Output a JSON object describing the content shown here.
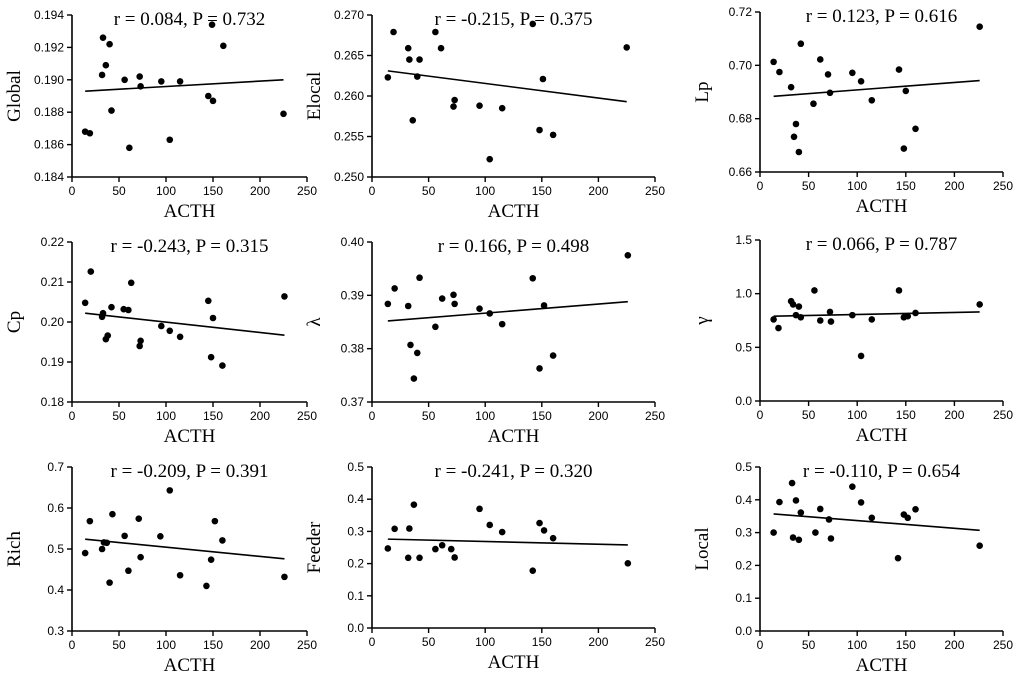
{
  "chart_data": [
    {
      "type": "scatter",
      "title": "r = 0.084, P = 0.732",
      "xlabel": "ACTH",
      "ylabel": "Global",
      "xlim": [
        0,
        250
      ],
      "xticks": [
        0,
        50,
        100,
        150,
        200,
        250
      ],
      "ylim": [
        0.184,
        0.194
      ],
      "yticks": [
        0.184,
        0.186,
        0.188,
        0.19,
        0.192,
        0.194
      ],
      "ytick_labels": [
        "0.184",
        "0.186",
        "0.188",
        "0.190",
        "0.192",
        "0.194"
      ],
      "x": [
        14,
        19,
        32,
        33,
        36,
        40,
        42,
        56,
        61,
        72,
        73,
        95,
        104,
        115,
        145,
        150,
        149,
        161,
        225
      ],
      "y": [
        0.1868,
        0.1867,
        0.1903,
        0.1926,
        0.1909,
        0.1922,
        0.1881,
        0.19,
        0.1858,
        0.1902,
        0.1896,
        0.1899,
        0.1863,
        0.1899,
        0.189,
        0.1887,
        0.1934,
        0.1921,
        0.1879
      ],
      "fit": {
        "x": [
          14,
          225
        ],
        "y": [
          0.1893,
          0.19
        ]
      }
    },
    {
      "type": "scatter",
      "title": "r = -0.215, P = 0.375",
      "xlabel": "ACTH",
      "ylabel": "Elocal",
      "xlim": [
        0,
        250
      ],
      "xticks": [
        0,
        50,
        100,
        150,
        200,
        250
      ],
      "ylim": [
        0.25,
        0.27
      ],
      "yticks": [
        0.25,
        0.255,
        0.26,
        0.265,
        0.27
      ],
      "ytick_labels": [
        "0.250",
        "0.255",
        "0.260",
        "0.265",
        "0.270"
      ],
      "x": [
        14,
        19,
        32,
        33,
        36,
        40,
        42,
        56,
        61,
        72,
        73,
        95,
        104,
        115,
        142,
        148,
        151,
        160,
        225
      ],
      "y": [
        0.2623,
        0.2679,
        0.2659,
        0.2645,
        0.257,
        0.2624,
        0.2645,
        0.2679,
        0.2659,
        0.2587,
        0.2595,
        0.2588,
        0.2522,
        0.2585,
        0.2689,
        0.2558,
        0.2621,
        0.2552,
        0.266
      ],
      "fit": {
        "x": [
          14,
          225
        ],
        "y": [
          0.2631,
          0.2593
        ]
      }
    },
    {
      "type": "scatter",
      "title": "r = 0.123, P = 0.616",
      "xlabel": "ACTH",
      "ylabel": "Lp",
      "xlim": [
        0,
        250
      ],
      "xticks": [
        0,
        50,
        100,
        150,
        200,
        250
      ],
      "ylim": [
        0.66,
        0.72
      ],
      "yticks": [
        0.66,
        0.68,
        0.7,
        0.72
      ],
      "ytick_labels": [
        "0.66",
        "0.68",
        "0.70",
        "0.72"
      ],
      "x": [
        14,
        20,
        32,
        35,
        37,
        40,
        42,
        55,
        62,
        70,
        72,
        95,
        104,
        115,
        143,
        148,
        150,
        160,
        226
      ],
      "y": [
        0.7013,
        0.6975,
        0.6918,
        0.6732,
        0.678,
        0.6675,
        0.7081,
        0.6856,
        0.7022,
        0.6966,
        0.6897,
        0.6972,
        0.694,
        0.6869,
        0.6984,
        0.6688,
        0.6904,
        0.6762,
        0.7145
      ],
      "fit": {
        "x": [
          14,
          226
        ],
        "y": [
          0.6884,
          0.6943
        ]
      }
    },
    {
      "type": "scatter",
      "title": "r = -0.243, P = 0.315",
      "xlabel": "ACTH",
      "ylabel": "Cp",
      "xlim": [
        0,
        250
      ],
      "xticks": [
        0,
        50,
        100,
        150,
        200,
        250
      ],
      "ylim": [
        0.18,
        0.22
      ],
      "yticks": [
        0.18,
        0.19,
        0.2,
        0.21,
        0.22
      ],
      "ytick_labels": [
        "0.18",
        "0.19",
        "0.20",
        "0.21",
        "0.22"
      ],
      "x": [
        14,
        20,
        32,
        33,
        36,
        38,
        42,
        55,
        60,
        63,
        72,
        73,
        95,
        104,
        115,
        145,
        148,
        150,
        160,
        226
      ],
      "y": [
        0.2048,
        0.2126,
        0.2013,
        0.2022,
        0.1957,
        0.1966,
        0.2037,
        0.2032,
        0.203,
        0.2098,
        0.194,
        0.1953,
        0.199,
        0.1978,
        0.1963,
        0.2053,
        0.1912,
        0.201,
        0.1891,
        0.2064
      ],
      "fit": {
        "x": [
          14,
          226
        ],
        "y": [
          0.2022,
          0.1967
        ]
      }
    },
    {
      "type": "scatter",
      "title": "r = 0.166, P = 0.498",
      "xlabel": "ACTH",
      "ylabel": "λ",
      "xlim": [
        0,
        250
      ],
      "xticks": [
        0,
        50,
        100,
        150,
        200,
        250
      ],
      "ylim": [
        0.37,
        0.4
      ],
      "yticks": [
        0.37,
        0.38,
        0.39,
        0.4
      ],
      "ytick_labels": [
        "0.37",
        "0.38",
        "0.39",
        "0.40"
      ],
      "x": [
        14,
        20,
        32,
        34,
        37,
        40,
        42,
        56,
        62,
        72,
        73,
        95,
        104,
        115,
        142,
        148,
        152,
        160,
        226
      ],
      "y": [
        0.3884,
        0.3913,
        0.388,
        0.3807,
        0.3744,
        0.3792,
        0.3933,
        0.3841,
        0.3894,
        0.3901,
        0.3884,
        0.3875,
        0.3866,
        0.3846,
        0.3932,
        0.3763,
        0.3881,
        0.3787,
        0.3975
      ],
      "fit": {
        "x": [
          14,
          226
        ],
        "y": [
          0.3852,
          0.3888
        ]
      }
    },
    {
      "type": "scatter",
      "title": "r = 0.066, P = 0.787",
      "xlabel": "ACTH",
      "ylabel": "γ",
      "xlim": [
        0,
        250
      ],
      "xticks": [
        0,
        50,
        100,
        150,
        200,
        250
      ],
      "ylim": [
        0.0,
        1.5
      ],
      "yticks": [
        0.0,
        0.5,
        1.0,
        1.5
      ],
      "ytick_labels": [
        "0.0",
        "0.5",
        "1.0",
        "1.5"
      ],
      "x": [
        14,
        19,
        32,
        34,
        37,
        40,
        42,
        56,
        62,
        72,
        73,
        95,
        104,
        115,
        143,
        148,
        152,
        160,
        226
      ],
      "y": [
        0.76,
        0.68,
        0.93,
        0.9,
        0.8,
        0.88,
        0.78,
        1.03,
        0.75,
        0.83,
        0.74,
        0.8,
        0.42,
        0.76,
        1.03,
        0.78,
        0.79,
        0.82,
        0.9
      ],
      "fit": {
        "x": [
          14,
          226
        ],
        "y": [
          0.79,
          0.83
        ]
      }
    },
    {
      "type": "scatter",
      "title": "r = -0.209, P = 0.391",
      "xlabel": "ACTH",
      "ylabel": "Rich",
      "xlim": [
        0,
        250
      ],
      "xticks": [
        0,
        50,
        100,
        150,
        200,
        250
      ],
      "ylim": [
        0.3,
        0.7
      ],
      "yticks": [
        0.3,
        0.4,
        0.5,
        0.6,
        0.7
      ],
      "ytick_labels": [
        "0.3",
        "0.4",
        "0.5",
        "0.6",
        "0.7"
      ],
      "x": [
        14,
        19,
        32,
        34,
        37,
        40,
        43,
        56,
        60,
        71,
        73,
        94,
        104,
        115,
        143,
        148,
        152,
        160,
        226
      ],
      "y": [
        0.49,
        0.568,
        0.5,
        0.516,
        0.515,
        0.418,
        0.585,
        0.532,
        0.447,
        0.574,
        0.48,
        0.531,
        0.643,
        0.436,
        0.41,
        0.474,
        0.568,
        0.521,
        0.432
      ],
      "fit": {
        "x": [
          14,
          226
        ],
        "y": [
          0.524,
          0.476
        ]
      }
    },
    {
      "type": "scatter",
      "title": "r = -0.241, P = 0.320",
      "xlabel": "ACTH",
      "ylabel": "Feeder",
      "xlim": [
        0,
        250
      ],
      "xticks": [
        0,
        50,
        100,
        150,
        200,
        250
      ],
      "ylim": [
        0.0,
        0.5
      ],
      "yticks": [
        0.0,
        0.1,
        0.2,
        0.3,
        0.4,
        0.5
      ],
      "ytick_labels": [
        "0.0",
        "0.1",
        "0.2",
        "0.3",
        "0.4",
        "0.5"
      ],
      "x": [
        14,
        20,
        32,
        33,
        37,
        42,
        56,
        62,
        70,
        73,
        95,
        104,
        115,
        142,
        148,
        152,
        160,
        226
      ],
      "y": [
        0.247,
        0.308,
        0.218,
        0.309,
        0.383,
        0.218,
        0.245,
        0.257,
        0.245,
        0.219,
        0.37,
        0.32,
        0.298,
        0.178,
        0.326,
        0.303,
        0.279,
        0.201
      ],
      "fit": {
        "x": [
          14,
          226
        ],
        "y": [
          0.276,
          0.258
        ]
      }
    },
    {
      "type": "scatter",
      "title": "r = -0.110, P = 0.654",
      "xlabel": "ACTH",
      "ylabel": "Local",
      "xlim": [
        0,
        250
      ],
      "xticks": [
        0,
        50,
        100,
        150,
        200,
        250
      ],
      "ylim": [
        0.0,
        0.5
      ],
      "yticks": [
        0.0,
        0.1,
        0.2,
        0.3,
        0.4,
        0.5
      ],
      "ytick_labels": [
        "0.0",
        "0.1",
        "0.2",
        "0.3",
        "0.4",
        "0.5"
      ],
      "x": [
        14,
        20,
        33,
        34,
        37,
        40,
        42,
        57,
        62,
        71,
        73,
        95,
        104,
        115,
        142,
        148,
        152,
        160,
        226
      ],
      "y": [
        0.3,
        0.393,
        0.451,
        0.285,
        0.398,
        0.278,
        0.361,
        0.3,
        0.372,
        0.34,
        0.282,
        0.44,
        0.392,
        0.345,
        0.222,
        0.355,
        0.345,
        0.371,
        0.26
      ],
      "fit": {
        "x": [
          14,
          226
        ],
        "y": [
          0.357,
          0.307
        ]
      }
    }
  ]
}
